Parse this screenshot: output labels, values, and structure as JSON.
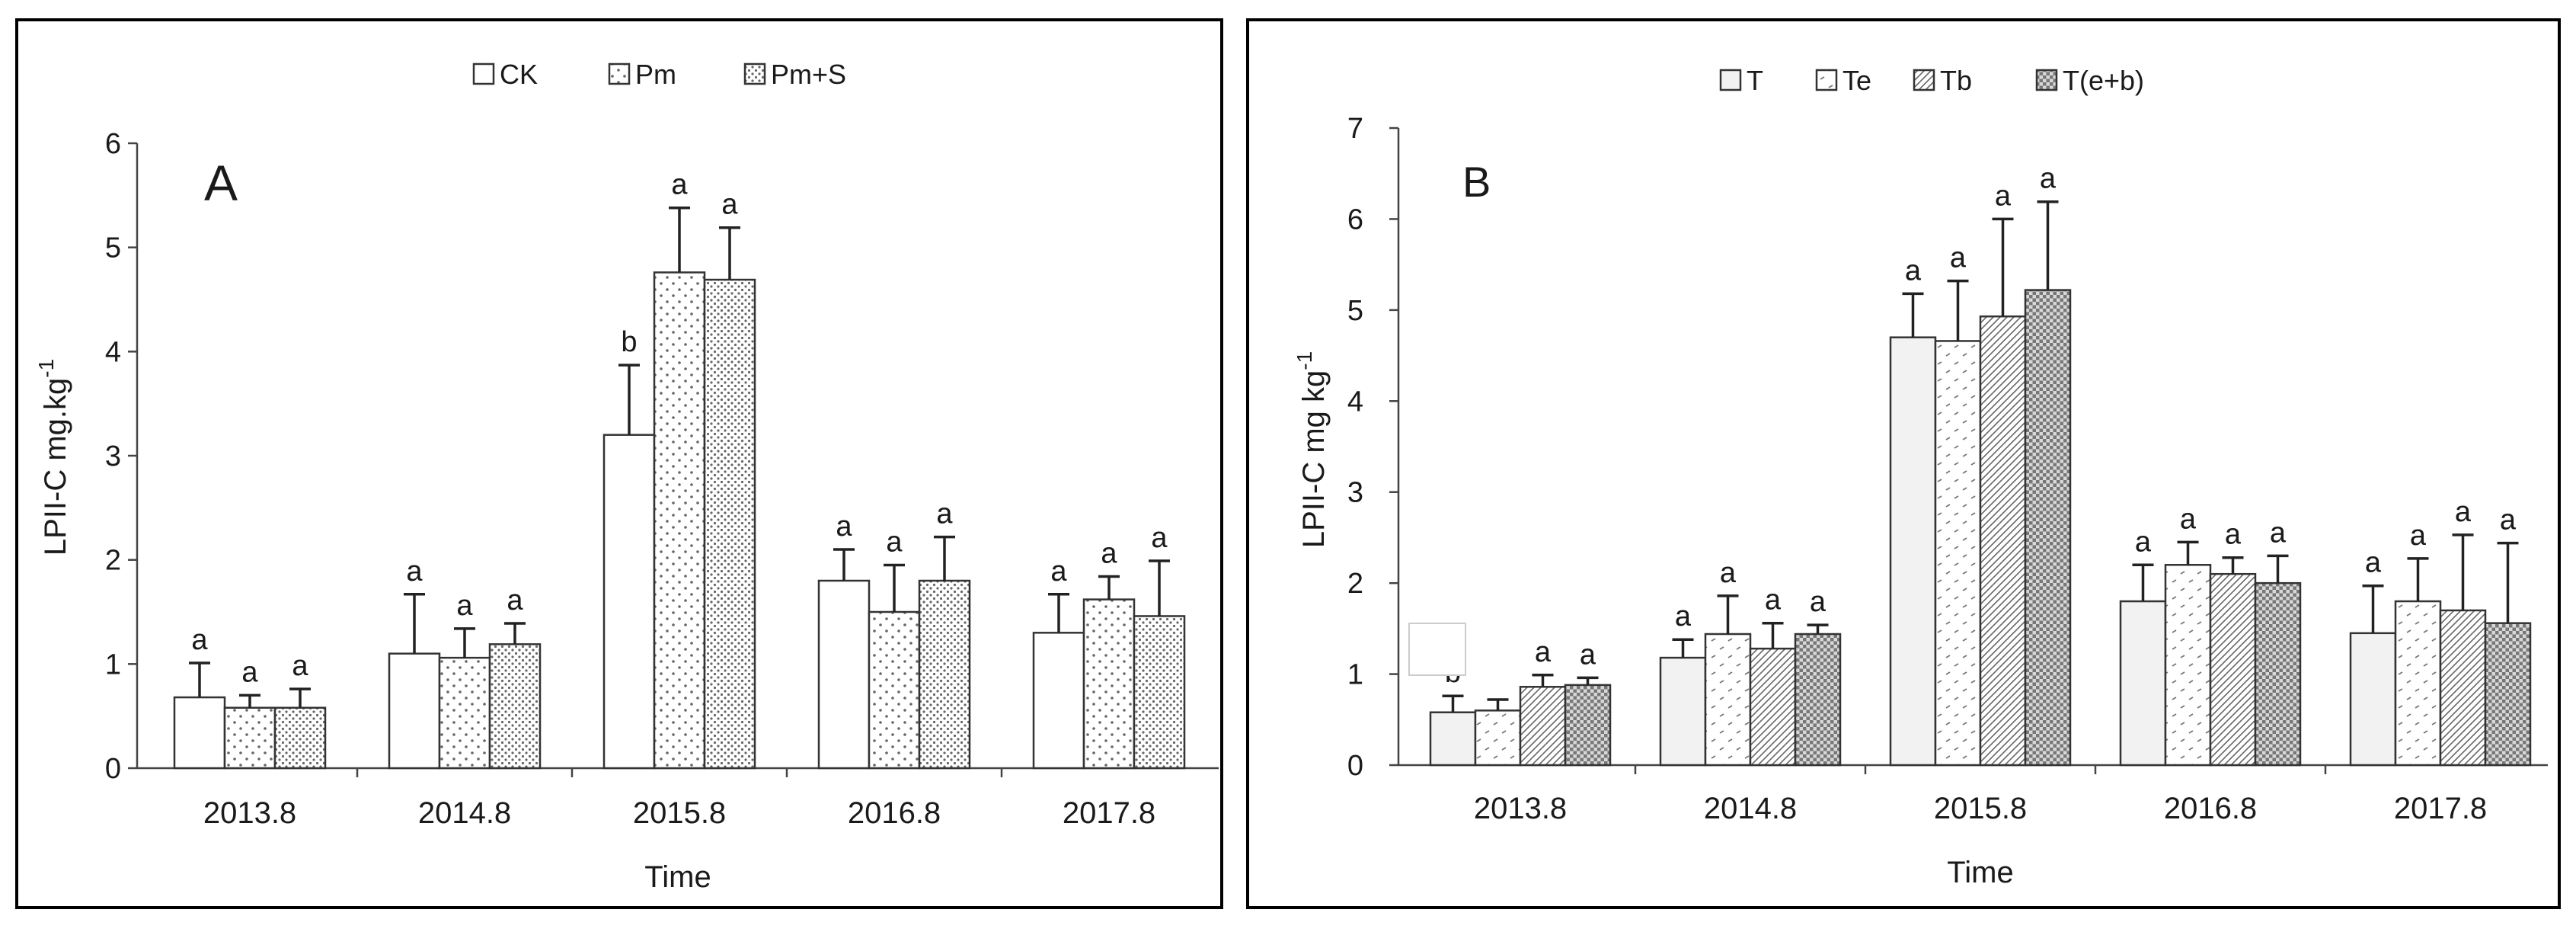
{
  "colors": {
    "frame": "#000000",
    "bar_edge": "#333333",
    "bar_white": "#ffffff",
    "bar_light": "#f2f2f2"
  },
  "chart_data": [
    {
      "type": "bar",
      "panel_letter": "A",
      "title": "",
      "xlabel": "Time",
      "ylabel_main": "LPII-C mg.kg",
      "ylabel_sup": "-1",
      "ylim": [
        0,
        6
      ],
      "yticks": [
        0,
        1,
        2,
        3,
        4,
        5,
        6
      ],
      "legend_position": "top-center",
      "categories": [
        "2013.8",
        "2014.8",
        "2015.8",
        "2016.8",
        "2017.8"
      ],
      "series": [
        {
          "name": "CK",
          "pattern": "white",
          "values": [
            0.68,
            1.1,
            3.2,
            1.8,
            1.3
          ],
          "errors": [
            0.33,
            0.57,
            0.67,
            0.3,
            0.37
          ],
          "letters": [
            "a",
            "a",
            "b",
            "a",
            "a"
          ]
        },
        {
          "name": "Pm",
          "pattern": "dots-sparse",
          "values": [
            0.58,
            1.06,
            4.76,
            1.5,
            1.62
          ],
          "errors": [
            0.12,
            0.28,
            0.62,
            0.45,
            0.22
          ],
          "letters": [
            "a",
            "a",
            "a",
            "a",
            "a"
          ]
        },
        {
          "name": "Pm+S",
          "pattern": "dots-dense",
          "values": [
            0.58,
            1.19,
            4.69,
            1.8,
            1.46
          ],
          "errors": [
            0.18,
            0.2,
            0.5,
            0.42,
            0.53
          ],
          "letters": [
            "a",
            "a",
            "a",
            "a",
            "a"
          ]
        }
      ]
    },
    {
      "type": "bar",
      "panel_letter": "B",
      "title": "",
      "xlabel": "Time",
      "ylabel_main": "LPII-C  mg kg",
      "ylabel_sup": "-1",
      "ylim": [
        0,
        7
      ],
      "yticks": [
        0,
        1,
        2,
        3,
        4,
        5,
        6,
        7
      ],
      "legend_position": "top-center",
      "categories": [
        "2013.8",
        "2014.8",
        "2015.8",
        "2016.8",
        "2017.8"
      ],
      "series": [
        {
          "name": "T",
          "pattern": "light",
          "values": [
            0.58,
            1.18,
            4.7,
            1.8,
            1.45
          ],
          "errors": [
            0.18,
            0.2,
            0.48,
            0.4,
            0.52
          ],
          "letters": [
            "b",
            "a",
            "a",
            "a",
            "a"
          ]
        },
        {
          "name": "Te",
          "pattern": "dashes",
          "values": [
            0.6,
            1.44,
            4.66,
            2.2,
            1.8
          ],
          "errors": [
            0.12,
            0.42,
            0.66,
            0.25,
            0.47
          ],
          "letters": [
            "",
            "a",
            "a",
            "a",
            "a"
          ]
        },
        {
          "name": "Tb",
          "pattern": "diagonal",
          "values": [
            0.86,
            1.28,
            4.93,
            2.1,
            1.7
          ],
          "errors": [
            0.13,
            0.28,
            1.07,
            0.18,
            0.83
          ],
          "letters": [
            "a",
            "a",
            "a",
            "a",
            "a"
          ]
        },
        {
          "name": "T(e+b)",
          "pattern": "checker",
          "values": [
            0.88,
            1.44,
            5.22,
            2.0,
            1.56
          ],
          "errors": [
            0.08,
            0.1,
            0.97,
            0.3,
            0.88
          ],
          "letters": [
            "a",
            "a",
            "a",
            "a",
            "a"
          ]
        }
      ]
    }
  ]
}
